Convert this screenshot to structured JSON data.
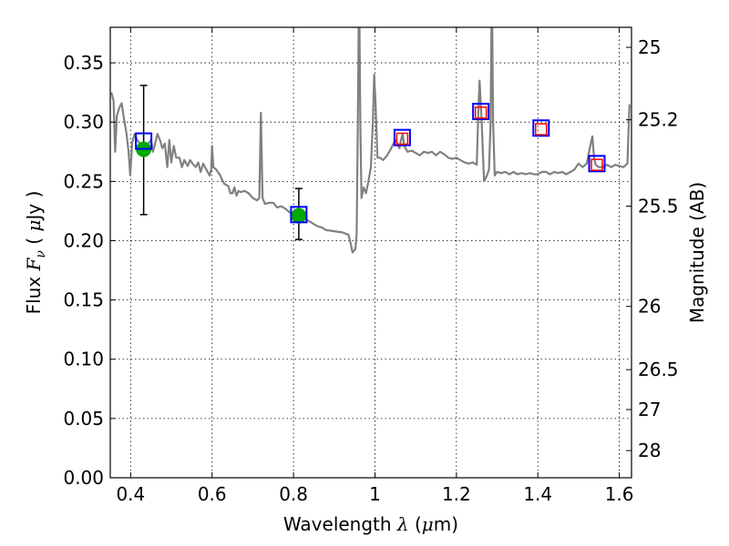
{
  "chart_data": {
    "type": "line",
    "xlabel": {
      "prefix": "Wavelength  ",
      "symbol": "λ",
      "unit_open": " (",
      "unit_mu": "μ",
      "unit_close": "m)"
    },
    "ylabel": {
      "prefix": "Flux  ",
      "symbol": "F",
      "sub": "ν",
      "unit_open": "  (  ",
      "unit_mu": "μ",
      "unit_close": "Jy  )"
    },
    "y2label": "Magnitude (AB)",
    "xlim": [
      0.35,
      1.63
    ],
    "ylim": [
      0.0,
      0.38
    ],
    "grid": true,
    "x_ticks": [
      {
        "value": 0.4,
        "label": "0.4"
      },
      {
        "value": 0.6,
        "label": "0.6"
      },
      {
        "value": 0.8,
        "label": "0.8"
      },
      {
        "value": 1.0,
        "label": "1"
      },
      {
        "value": 1.2,
        "label": "1.2"
      },
      {
        "value": 1.4,
        "label": "1.4"
      },
      {
        "value": 1.6,
        "label": "1.6"
      }
    ],
    "y_ticks": [
      {
        "value": 0.0,
        "label": "0.00"
      },
      {
        "value": 0.05,
        "label": "0.05"
      },
      {
        "value": 0.1,
        "label": "0.10"
      },
      {
        "value": 0.15,
        "label": "0.15"
      },
      {
        "value": 0.2,
        "label": "0.20"
      },
      {
        "value": 0.25,
        "label": "0.25"
      },
      {
        "value": 0.3,
        "label": "0.30"
      },
      {
        "value": 0.35,
        "label": "0.35"
      }
    ],
    "y2_ticks": [
      {
        "value": 25,
        "label": "25"
      },
      {
        "value": 25.2,
        "label": "25.2"
      },
      {
        "value": 25.5,
        "label": "25.5"
      },
      {
        "value": 26,
        "label": "26"
      },
      {
        "value": 26.5,
        "label": "26.5"
      },
      {
        "value": 27,
        "label": "27"
      },
      {
        "value": 28,
        "label": "28"
      }
    ],
    "series": [
      {
        "kind": "line",
        "color": "#808080",
        "points": [
          [
            0.353,
            0.325
          ],
          [
            0.358,
            0.318
          ],
          [
            0.362,
            0.275
          ],
          [
            0.366,
            0.305
          ],
          [
            0.372,
            0.312
          ],
          [
            0.378,
            0.316
          ],
          [
            0.384,
            0.302
          ],
          [
            0.39,
            0.29
          ],
          [
            0.395,
            0.275
          ],
          [
            0.399,
            0.255
          ],
          [
            0.404,
            0.283
          ],
          [
            0.41,
            0.29
          ],
          [
            0.416,
            0.285
          ],
          [
            0.423,
            0.282
          ],
          [
            0.43,
            0.28
          ],
          [
            0.44,
            0.28
          ],
          [
            0.45,
            0.285
          ],
          [
            0.455,
            0.275
          ],
          [
            0.46,
            0.282
          ],
          [
            0.466,
            0.29
          ],
          [
            0.472,
            0.285
          ],
          [
            0.478,
            0.278
          ],
          [
            0.484,
            0.282
          ],
          [
            0.49,
            0.262
          ],
          [
            0.495,
            0.285
          ],
          [
            0.5,
            0.266
          ],
          [
            0.506,
            0.28
          ],
          [
            0.512,
            0.27
          ],
          [
            0.52,
            0.27
          ],
          [
            0.526,
            0.262
          ],
          [
            0.532,
            0.268
          ],
          [
            0.54,
            0.263
          ],
          [
            0.546,
            0.268
          ],
          [
            0.552,
            0.265
          ],
          [
            0.56,
            0.262
          ],
          [
            0.566,
            0.266
          ],
          [
            0.572,
            0.258
          ],
          [
            0.578,
            0.265
          ],
          [
            0.586,
            0.26
          ],
          [
            0.594,
            0.255
          ],
          [
            0.598,
            0.26
          ],
          [
            0.6,
            0.28
          ],
          [
            0.603,
            0.262
          ],
          [
            0.61,
            0.26
          ],
          [
            0.62,
            0.255
          ],
          [
            0.625,
            0.251
          ],
          [
            0.63,
            0.248
          ],
          [
            0.64,
            0.246
          ],
          [
            0.645,
            0.24
          ],
          [
            0.65,
            0.24
          ],
          [
            0.655,
            0.245
          ],
          [
            0.66,
            0.238
          ],
          [
            0.665,
            0.242
          ],
          [
            0.67,
            0.241
          ],
          [
            0.68,
            0.242
          ],
          [
            0.69,
            0.24
          ],
          [
            0.7,
            0.236
          ],
          [
            0.71,
            0.234
          ],
          [
            0.716,
            0.236
          ],
          [
            0.72,
            0.308
          ],
          [
            0.724,
            0.236
          ],
          [
            0.73,
            0.231
          ],
          [
            0.74,
            0.232
          ],
          [
            0.75,
            0.232
          ],
          [
            0.76,
            0.228
          ],
          [
            0.77,
            0.229
          ],
          [
            0.78,
            0.227
          ],
          [
            0.79,
            0.224
          ],
          [
            0.8,
            0.223
          ],
          [
            0.81,
            0.221
          ],
          [
            0.82,
            0.219
          ],
          [
            0.83,
            0.218
          ],
          [
            0.84,
            0.216
          ],
          [
            0.85,
            0.214
          ],
          [
            0.86,
            0.212
          ],
          [
            0.87,
            0.211
          ],
          [
            0.88,
            0.209
          ],
          [
            0.9,
            0.208
          ],
          [
            0.92,
            0.207
          ],
          [
            0.935,
            0.205
          ],
          [
            0.94,
            0.198
          ],
          [
            0.945,
            0.19
          ],
          [
            0.952,
            0.193
          ],
          [
            0.955,
            0.205
          ],
          [
            0.958,
            0.3
          ],
          [
            0.96,
            0.38
          ],
          [
            0.962,
            0.38
          ],
          [
            0.964,
            0.3
          ],
          [
            0.967,
            0.236
          ],
          [
            0.972,
            0.245
          ],
          [
            0.978,
            0.24
          ],
          [
            0.984,
            0.25
          ],
          [
            0.99,
            0.262
          ],
          [
            0.995,
            0.3
          ],
          [
            0.998,
            0.34
          ],
          [
            1.001,
            0.32
          ],
          [
            1.006,
            0.27
          ],
          [
            1.012,
            0.27
          ],
          [
            1.02,
            0.268
          ],
          [
            1.03,
            0.272
          ],
          [
            1.04,
            0.278
          ],
          [
            1.05,
            0.285
          ],
          [
            1.06,
            0.278
          ],
          [
            1.064,
            0.285
          ],
          [
            1.068,
            0.29
          ],
          [
            1.072,
            0.28
          ],
          [
            1.08,
            0.275
          ],
          [
            1.09,
            0.276
          ],
          [
            1.1,
            0.274
          ],
          [
            1.11,
            0.272
          ],
          [
            1.12,
            0.275
          ],
          [
            1.13,
            0.274
          ],
          [
            1.14,
            0.275
          ],
          [
            1.15,
            0.272
          ],
          [
            1.16,
            0.275
          ],
          [
            1.17,
            0.273
          ],
          [
            1.18,
            0.27
          ],
          [
            1.19,
            0.269
          ],
          [
            1.2,
            0.27
          ],
          [
            1.21,
            0.268
          ],
          [
            1.22,
            0.266
          ],
          [
            1.23,
            0.265
          ],
          [
            1.24,
            0.266
          ],
          [
            1.25,
            0.264
          ],
          [
            1.254,
            0.31
          ],
          [
            1.257,
            0.335
          ],
          [
            1.262,
            0.3
          ],
          [
            1.268,
            0.25
          ],
          [
            1.275,
            0.255
          ],
          [
            1.28,
            0.26
          ],
          [
            1.284,
            0.3
          ],
          [
            1.286,
            0.38
          ],
          [
            1.288,
            0.38
          ],
          [
            1.29,
            0.3
          ],
          [
            1.294,
            0.255
          ],
          [
            1.3,
            0.258
          ],
          [
            1.31,
            0.257
          ],
          [
            1.32,
            0.258
          ],
          [
            1.33,
            0.256
          ],
          [
            1.34,
            0.258
          ],
          [
            1.35,
            0.256
          ],
          [
            1.36,
            0.257
          ],
          [
            1.37,
            0.256
          ],
          [
            1.38,
            0.257
          ],
          [
            1.39,
            0.256
          ],
          [
            1.4,
            0.256
          ],
          [
            1.41,
            0.258
          ],
          [
            1.42,
            0.258
          ],
          [
            1.43,
            0.256
          ],
          [
            1.44,
            0.258
          ],
          [
            1.45,
            0.257
          ],
          [
            1.46,
            0.258
          ],
          [
            1.47,
            0.256
          ],
          [
            1.48,
            0.258
          ],
          [
            1.49,
            0.26
          ],
          [
            1.5,
            0.265
          ],
          [
            1.51,
            0.262
          ],
          [
            1.52,
            0.265
          ],
          [
            1.53,
            0.282
          ],
          [
            1.534,
            0.288
          ],
          [
            1.538,
            0.27
          ],
          [
            1.542,
            0.264
          ],
          [
            1.55,
            0.262
          ],
          [
            1.56,
            0.262
          ],
          [
            1.57,
            0.264
          ],
          [
            1.58,
            0.262
          ],
          [
            1.59,
            0.264
          ],
          [
            1.6,
            0.263
          ],
          [
            1.61,
            0.262
          ],
          [
            1.62,
            0.265
          ],
          [
            1.625,
            0.315
          ]
        ]
      },
      {
        "kind": "scatter",
        "marker": "filled-circle",
        "color": "#00aa00",
        "error_color": "#000000",
        "points": [
          {
            "x": 0.432,
            "y": 0.277,
            "yerr_low": 0.222,
            "yerr_high": 0.331
          },
          {
            "x": 0.813,
            "y": 0.221,
            "yerr_low": 0.201,
            "yerr_high": 0.244
          }
        ]
      },
      {
        "kind": "scatter",
        "marker": "open-square",
        "color": "#0000ff",
        "points": [
          {
            "x": 0.432,
            "y": 0.284
          },
          {
            "x": 0.813,
            "y": 0.222
          },
          {
            "x": 1.067,
            "y": 0.287
          },
          {
            "x": 1.26,
            "y": 0.309
          },
          {
            "x": 1.408,
            "y": 0.295
          },
          {
            "x": 1.545,
            "y": 0.265
          }
        ]
      },
      {
        "kind": "scatter",
        "marker": "open-square-small",
        "color": "#ff0000",
        "points": [
          {
            "x": 1.067,
            "y": 0.286
          },
          {
            "x": 1.26,
            "y": 0.308
          },
          {
            "x": 1.408,
            "y": 0.294
          },
          {
            "x": 1.545,
            "y": 0.264
          }
        ]
      }
    ]
  }
}
